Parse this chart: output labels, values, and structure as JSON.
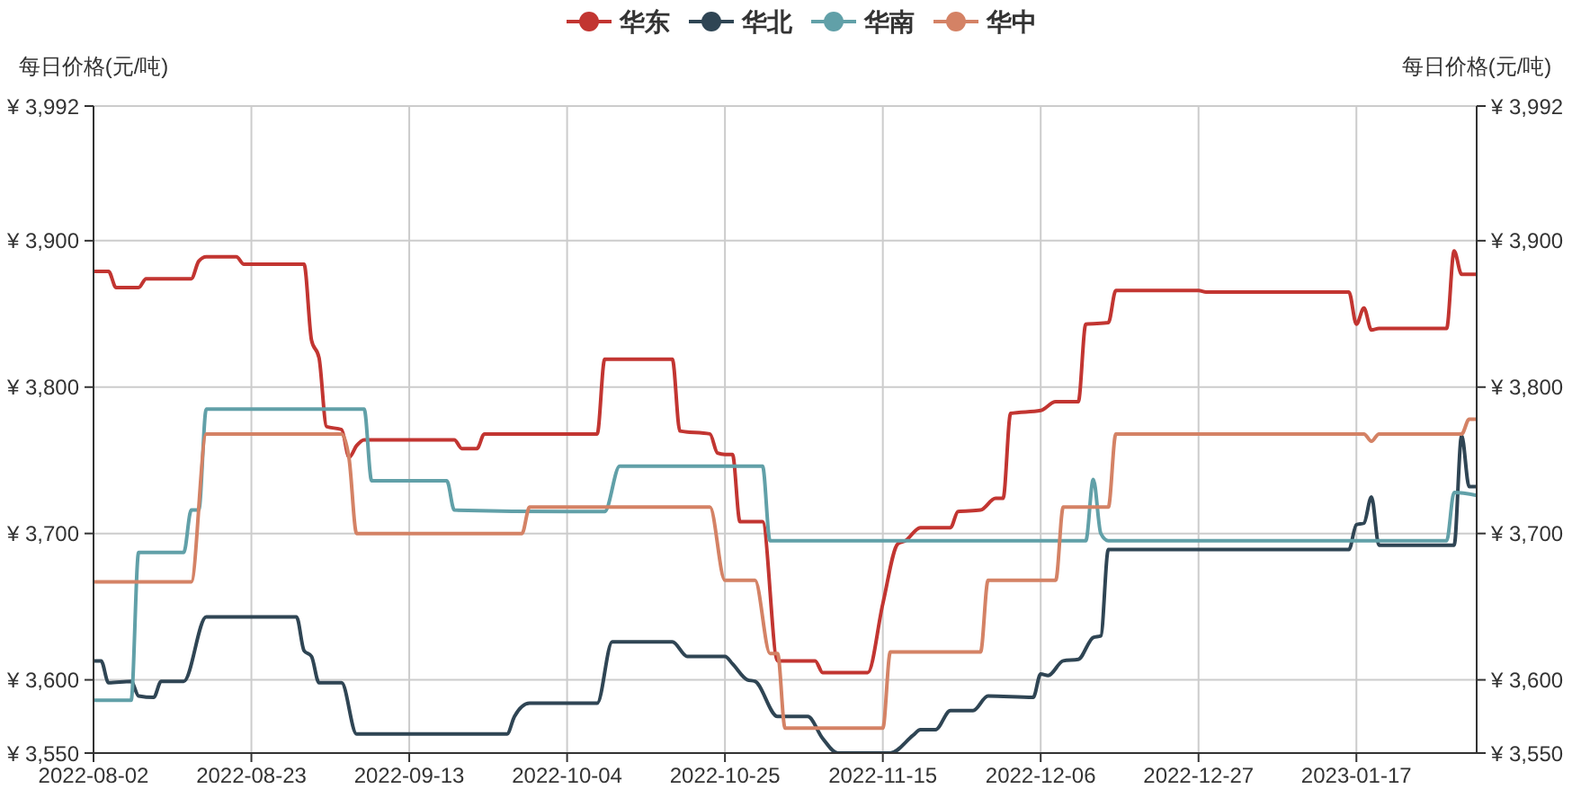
{
  "chart_data": {
    "type": "line",
    "ylabel": "每日价格(元/吨)",
    "y2label": "每日价格(元/吨)",
    "xlim": [
      "2022-08-02",
      "2023-02-02"
    ],
    "xticks": [
      "2022-08-02",
      "2022-08-23",
      "2022-09-13",
      "2022-10-04",
      "2022-10-25",
      "2022-11-15",
      "2022-12-06",
      "2022-12-27",
      "2023-01-17"
    ],
    "ylim": [
      3550,
      3992
    ],
    "yticks": [
      {
        "value": 3550,
        "label": "¥ 3,550"
      },
      {
        "value": 3600,
        "label": "¥ 3,600"
      },
      {
        "value": 3700,
        "label": "¥ 3,700"
      },
      {
        "value": 3800,
        "label": "¥ 3,800"
      },
      {
        "value": 3900,
        "label": "¥ 3,900"
      },
      {
        "value": 3992,
        "label": "¥ 3,992"
      }
    ],
    "y2lim": [
      3550,
      3992
    ],
    "y2ticks": [
      {
        "value": 3550,
        "label": "¥ 3,550"
      },
      {
        "value": 3600,
        "label": "¥ 3,600"
      },
      {
        "value": 3700,
        "label": "¥ 3,700"
      },
      {
        "value": 3800,
        "label": "¥ 3,800"
      },
      {
        "value": 3900,
        "label": "¥ 3,900"
      },
      {
        "value": 3992,
        "label": "¥ 3,992"
      }
    ],
    "grid": true,
    "legend": "top",
    "line_style": "solid",
    "series": [
      {
        "name": "华东",
        "color": "#c23531",
        "x": [
          "2022-08-02",
          "2022-08-04",
          "2022-08-05",
          "2022-08-08",
          "2022-08-09",
          "2022-08-15",
          "2022-08-16",
          "2022-08-17",
          "2022-08-21",
          "2022-08-22",
          "2022-08-23",
          "2022-08-30",
          "2022-08-31",
          "2022-09-01",
          "2022-09-02",
          "2022-09-04",
          "2022-09-05",
          "2022-09-06",
          "2022-09-07",
          "2022-09-13",
          "2022-09-19",
          "2022-09-20",
          "2022-09-22",
          "2022-09-23",
          "2022-10-04",
          "2022-10-08",
          "2022-10-09",
          "2022-10-18",
          "2022-10-19",
          "2022-10-23",
          "2022-10-24",
          "2022-10-25",
          "2022-10-26",
          "2022-10-27",
          "2022-10-30",
          "2022-11-01",
          "2022-11-06",
          "2022-11-07",
          "2022-11-13",
          "2022-11-15",
          "2022-11-17",
          "2022-11-18",
          "2022-11-20",
          "2022-11-24",
          "2022-11-25",
          "2022-11-28",
          "2022-11-30",
          "2022-12-01",
          "2022-12-02",
          "2022-12-06",
          "2022-12-08",
          "2022-12-11",
          "2022-12-12",
          "2022-12-15",
          "2022-12-16",
          "2022-12-27",
          "2022-12-28",
          "2023-01-16",
          "2023-01-17",
          "2023-01-18",
          "2023-01-19",
          "2023-01-20",
          "2023-01-29",
          "2023-01-30",
          "2023-01-31",
          "2023-02-02"
        ],
        "values": [
          3879,
          3879,
          3868,
          3868,
          3874,
          3874,
          3886,
          3889,
          3889,
          3884,
          3884,
          3884,
          3832,
          3820,
          3773,
          3771,
          3752,
          3760,
          3764,
          3764,
          3764,
          3758,
          3758,
          3768,
          3768,
          3768,
          3819,
          3819,
          3770,
          3768,
          3755,
          3754,
          3754,
          3708,
          3708,
          3613,
          3613,
          3605,
          3605,
          3652,
          3693,
          3695,
          3704,
          3704,
          3715,
          3716,
          3724,
          3724,
          3782,
          3784,
          3790,
          3790,
          3843,
          3844,
          3866,
          3866,
          3865,
          3865,
          3843,
          3854,
          3839,
          3840,
          3840,
          3893,
          3877,
          3877
        ]
      },
      {
        "name": "华北",
        "color": "#2f4554",
        "x": [
          "2022-08-02",
          "2022-08-03",
          "2022-08-04",
          "2022-08-07",
          "2022-08-08",
          "2022-08-10",
          "2022-08-11",
          "2022-08-14",
          "2022-08-17",
          "2022-08-23",
          "2022-08-29",
          "2022-08-30",
          "2022-08-31",
          "2022-09-01",
          "2022-09-04",
          "2022-09-06",
          "2022-09-13",
          "2022-09-26",
          "2022-09-27",
          "2022-09-29",
          "2022-10-04",
          "2022-10-08",
          "2022-10-10",
          "2022-10-18",
          "2022-10-20",
          "2022-10-25",
          "2022-10-26",
          "2022-10-28",
          "2022-10-29",
          "2022-11-01",
          "2022-11-05",
          "2022-11-07",
          "2022-11-09",
          "2022-11-15",
          "2022-11-16",
          "2022-11-19",
          "2022-11-20",
          "2022-11-22",
          "2022-11-24",
          "2022-11-27",
          "2022-11-29",
          "2022-12-05",
          "2022-12-06",
          "2022-12-07",
          "2022-12-09",
          "2022-12-11",
          "2022-12-13",
          "2022-12-14",
          "2022-12-15",
          "2022-12-27",
          "2023-01-16",
          "2023-01-17",
          "2023-01-18",
          "2023-01-19",
          "2023-01-20",
          "2023-01-30",
          "2023-01-31",
          "2023-02-01",
          "2023-02-02"
        ],
        "values": [
          3613,
          3613,
          3598,
          3599,
          3589,
          3588,
          3599,
          3599,
          3643,
          3643,
          3643,
          3620,
          3616,
          3598,
          3598,
          3563,
          3563,
          3563,
          3575,
          3584,
          3584,
          3584,
          3626,
          3626,
          3616,
          3616,
          3611,
          3600,
          3599,
          3575,
          3575,
          3560,
          3550,
          3550,
          3550,
          3562,
          3566,
          3566,
          3579,
          3579,
          3589,
          3588,
          3604,
          3603,
          3613,
          3614,
          3629,
          3630,
          3689,
          3689,
          3689,
          3706,
          3707,
          3725,
          3692,
          3692,
          3767,
          3732,
          3732
        ]
      },
      {
        "name": "华南",
        "color": "#61a0a8",
        "x": [
          "2022-08-02",
          "2022-08-07",
          "2022-08-08",
          "2022-08-14",
          "2022-08-15",
          "2022-08-16",
          "2022-08-17",
          "2022-08-23",
          "2022-09-07",
          "2022-09-08",
          "2022-09-13",
          "2022-09-18",
          "2022-09-19",
          "2022-10-04",
          "2022-10-09",
          "2022-10-11",
          "2022-10-25",
          "2022-10-30",
          "2022-10-31",
          "2022-11-15",
          "2022-12-06",
          "2022-12-12",
          "2022-12-13",
          "2022-12-14",
          "2022-12-15",
          "2022-12-27",
          "2023-01-17",
          "2023-01-29",
          "2023-01-30",
          "2023-02-02"
        ],
        "values": [
          3586,
          3586,
          3687,
          3687,
          3716,
          3716,
          3785,
          3785,
          3785,
          3736,
          3736,
          3736,
          3716,
          3715,
          3715,
          3746,
          3746,
          3746,
          3695,
          3695,
          3695,
          3695,
          3737,
          3700,
          3695,
          3695,
          3695,
          3695,
          3728,
          3726
        ]
      },
      {
        "name": "华中",
        "color": "#d48265",
        "x": [
          "2022-08-02",
          "2022-08-15",
          "2022-08-17",
          "2022-08-23",
          "2022-09-04",
          "2022-09-05",
          "2022-09-06",
          "2022-09-13",
          "2022-09-28",
          "2022-09-29",
          "2022-10-04",
          "2022-10-23",
          "2022-10-25",
          "2022-10-29",
          "2022-10-31",
          "2022-11-01",
          "2022-11-02",
          "2022-11-15",
          "2022-11-16",
          "2022-11-28",
          "2022-11-29",
          "2022-12-06",
          "2022-12-08",
          "2022-12-09",
          "2022-12-15",
          "2022-12-16",
          "2022-12-27",
          "2023-01-17",
          "2023-01-18",
          "2023-01-19",
          "2023-01-20",
          "2023-01-31",
          "2023-02-01",
          "2023-02-02"
        ],
        "values": [
          3667,
          3667,
          3768,
          3768,
          3768,
          3751,
          3700,
          3700,
          3700,
          3718,
          3718,
          3718,
          3668,
          3668,
          3618,
          3618,
          3567,
          3567,
          3619,
          3619,
          3668,
          3668,
          3668,
          3718,
          3718,
          3768,
          3768,
          3768,
          3768,
          3763,
          3768,
          3768,
          3778,
          3778
        ]
      }
    ]
  }
}
